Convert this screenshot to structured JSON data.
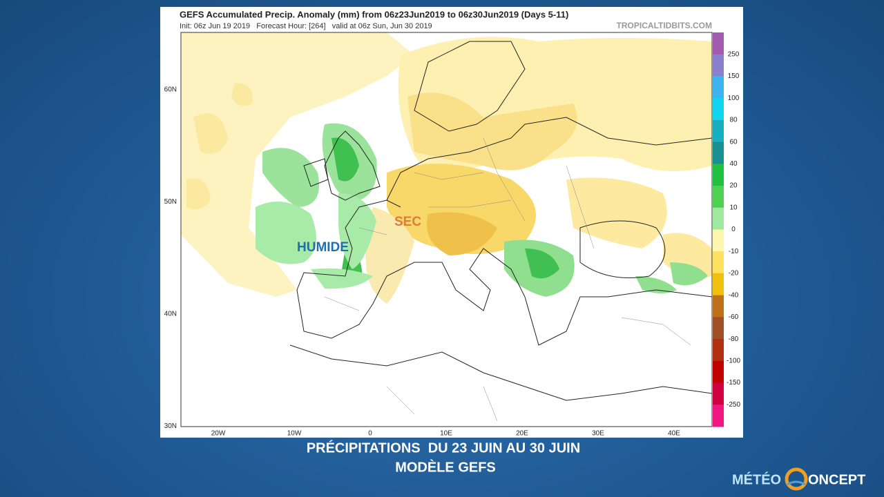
{
  "header": {
    "title": "GEFS Accumulated Precip. Anomaly (mm) from 06z23Jun2019 to 06z30Jun2019 (Days 5-11)",
    "subtitle": "Init: 06z Jun 19 2019   Forecast Hour: [264]   valid at 06z Sun, Jun 30 2019",
    "source": "TROPICALTIDBITS.COM"
  },
  "map": {
    "lat_labels": [
      "60N",
      "50N",
      "40N",
      "30N"
    ],
    "lon_labels": [
      "20W",
      "10W",
      "0",
      "10E",
      "20E",
      "30E",
      "40E"
    ],
    "annotations": [
      "HUMIDE",
      "SEC"
    ]
  },
  "colorbar": {
    "labels": [
      "250",
      "150",
      "100",
      "80",
      "60",
      "40",
      "20",
      "10",
      "0",
      "-10",
      "-20",
      "-40",
      "-60",
      "-80",
      "-100",
      "-150",
      "-250"
    ]
  },
  "caption": {
    "line1": "PRÉCIPITATIONS  DU 23 JUIN AU 30 JUIN",
    "line2": "MODÈLE GEFS"
  },
  "logo": {
    "text1": "MÉTÉO",
    "text2": "ONCEPT"
  }
}
